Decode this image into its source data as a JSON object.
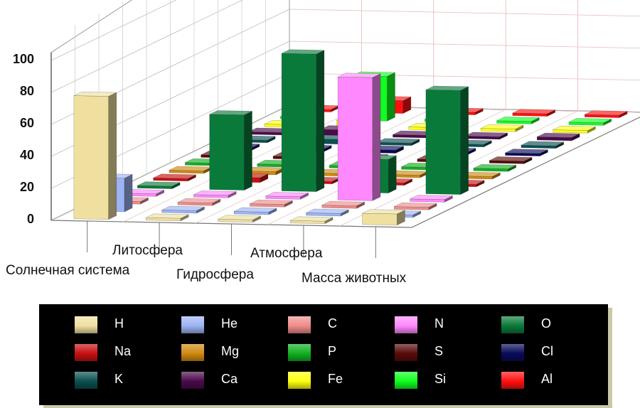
{
  "chart_data": {
    "type": "bar",
    "subtype": "3d-bar",
    "title": "",
    "xlabel": "",
    "ylabel": "",
    "ylim": [
      0,
      100
    ],
    "yticks": [
      "0",
      "20",
      "40",
      "60",
      "80",
      "100"
    ],
    "categories": [
      "Солнечная система",
      "Литосфера",
      "Гидросфера",
      "Атмосфера",
      "Масса животных"
    ],
    "grid": true,
    "legend_position": "bottom",
    "series": [
      {
        "name": "H",
        "color": "#f0e0a0",
        "values": [
          77,
          0,
          0,
          0,
          7
        ]
      },
      {
        "name": "He",
        "color": "#9cb4f4",
        "values": [
          21,
          0,
          0,
          0,
          0
        ]
      },
      {
        "name": "C",
        "color": "#f08c8c",
        "values": [
          0,
          0,
          0,
          0,
          0
        ]
      },
      {
        "name": "N",
        "color": "#ff88ff",
        "values": [
          0,
          0,
          0,
          77,
          0
        ]
      },
      {
        "name": "O",
        "color": "#0a7a3a",
        "values": [
          1,
          47,
          86,
          21,
          65
        ]
      },
      {
        "name": "Na",
        "color": "#c81010",
        "values": [
          0,
          3,
          1,
          0,
          0
        ]
      },
      {
        "name": "Mg",
        "color": "#d08a10",
        "values": [
          0,
          2,
          0,
          0,
          0
        ]
      },
      {
        "name": "P",
        "color": "#10b020",
        "values": [
          0,
          0,
          0,
          0,
          1
        ]
      },
      {
        "name": "S",
        "color": "#5a0a0a",
        "values": [
          0,
          0,
          0,
          0,
          0
        ]
      },
      {
        "name": "Cl",
        "color": "#0a0a5a",
        "values": [
          0,
          0,
          2,
          0,
          0
        ]
      },
      {
        "name": "K",
        "color": "#0a5050",
        "values": [
          0,
          3,
          0,
          0,
          0
        ]
      },
      {
        "name": "Ca",
        "color": "#4a0a4a",
        "values": [
          0,
          4,
          0,
          0,
          2
        ]
      },
      {
        "name": "Fe",
        "color": "#ffff10",
        "values": [
          0,
          5,
          0,
          0,
          0
        ]
      },
      {
        "name": "Si",
        "color": "#10ff20",
        "values": [
          0,
          28,
          0,
          0,
          0
        ]
      },
      {
        "name": "Al",
        "color": "#ff1010",
        "values": [
          0,
          8,
          0,
          0,
          0
        ]
      }
    ]
  }
}
